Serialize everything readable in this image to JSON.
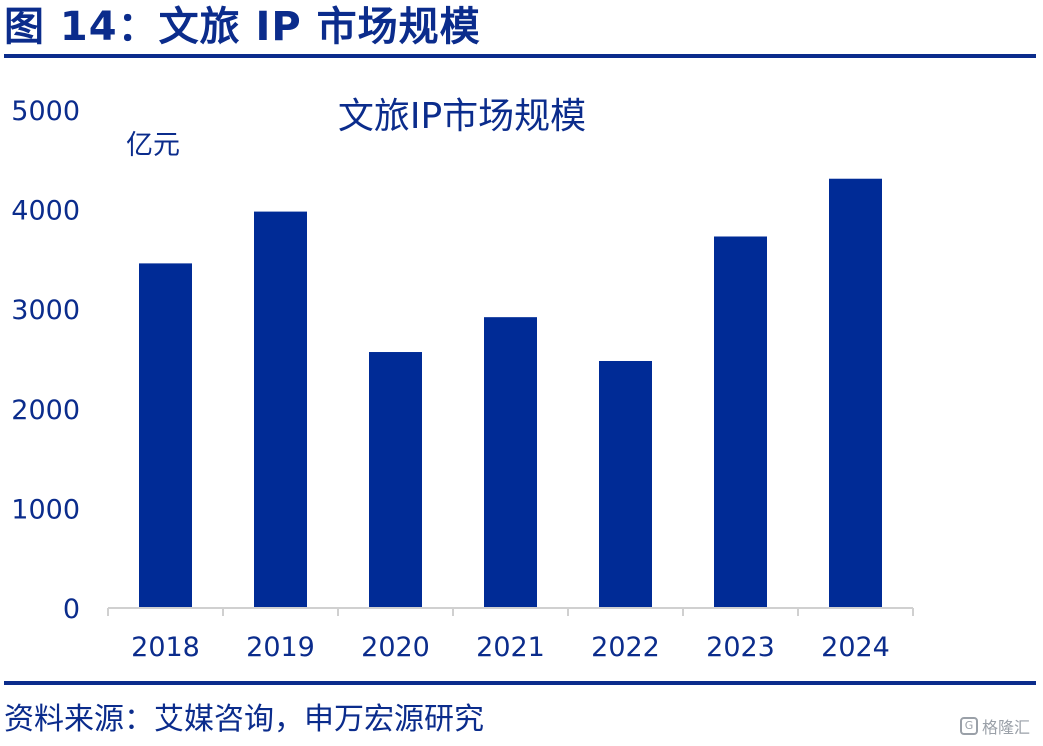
{
  "figure": {
    "title": "图 14：文旅 IP 市场规模",
    "source": "资料来源：艾媒咨询，申万宏源研究",
    "watermark": "格隆汇",
    "watermark_icon": "glh-logo-icon"
  },
  "colors": {
    "accent": "#0b2c8c",
    "bar": "#002b96",
    "axis": "#d0d0d0",
    "text": "#0b2c8c"
  },
  "chart_data": {
    "type": "bar",
    "title": "文旅IP市场规模",
    "unit_label": "亿元",
    "xlabel": "",
    "ylabel": "",
    "categories": [
      "2018",
      "2019",
      "2020",
      "2021",
      "2022",
      "2023",
      "2024"
    ],
    "values": [
      3460,
      3980,
      2570,
      2920,
      2480,
      3730,
      4310
    ],
    "ylim": [
      0,
      5000
    ],
    "yticks": [
      "0",
      "1000",
      "2000",
      "3000",
      "4000",
      "5000"
    ],
    "grid": false,
    "legend": "none"
  }
}
